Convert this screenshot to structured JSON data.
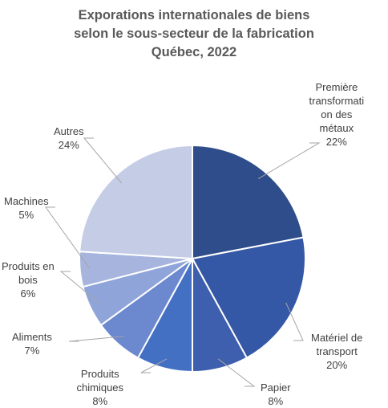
{
  "chart_data": {
    "type": "pie",
    "title": [
      "Exporations internationales de biens",
      "selon le sous-secteur de la fabrication",
      "Québec, 2022"
    ],
    "slices": [
      {
        "label_lines": [
          "Première",
          "transformati",
          "on des",
          "métaux"
        ],
        "value": 22,
        "value_label": "22%",
        "color": "#2e4d8a"
      },
      {
        "label_lines": [
          "Matériel de",
          "transport"
        ],
        "value": 20,
        "value_label": "20%",
        "color": "#3558a6"
      },
      {
        "label_lines": [
          "Papier"
        ],
        "value": 8,
        "value_label": "8%",
        "color": "#3e5fad"
      },
      {
        "label_lines": [
          "Produits",
          "chimiques"
        ],
        "value": 8,
        "value_label": "8%",
        "color": "#4470c4"
      },
      {
        "label_lines": [
          "Aliments"
        ],
        "value": 7,
        "value_label": "7%",
        "color": "#6c88cf"
      },
      {
        "label_lines": [
          "Produits en",
          "bois"
        ],
        "value": 6,
        "value_label": "6%",
        "color": "#8fa4d9"
      },
      {
        "label_lines": [
          "Machines"
        ],
        "value": 5,
        "value_label": "5%",
        "color": "#a6b4de"
      },
      {
        "label_lines": [
          "Autres"
        ],
        "value": 24,
        "value_label": "24%",
        "color": "#c5cce6"
      }
    ],
    "legend": "none"
  }
}
